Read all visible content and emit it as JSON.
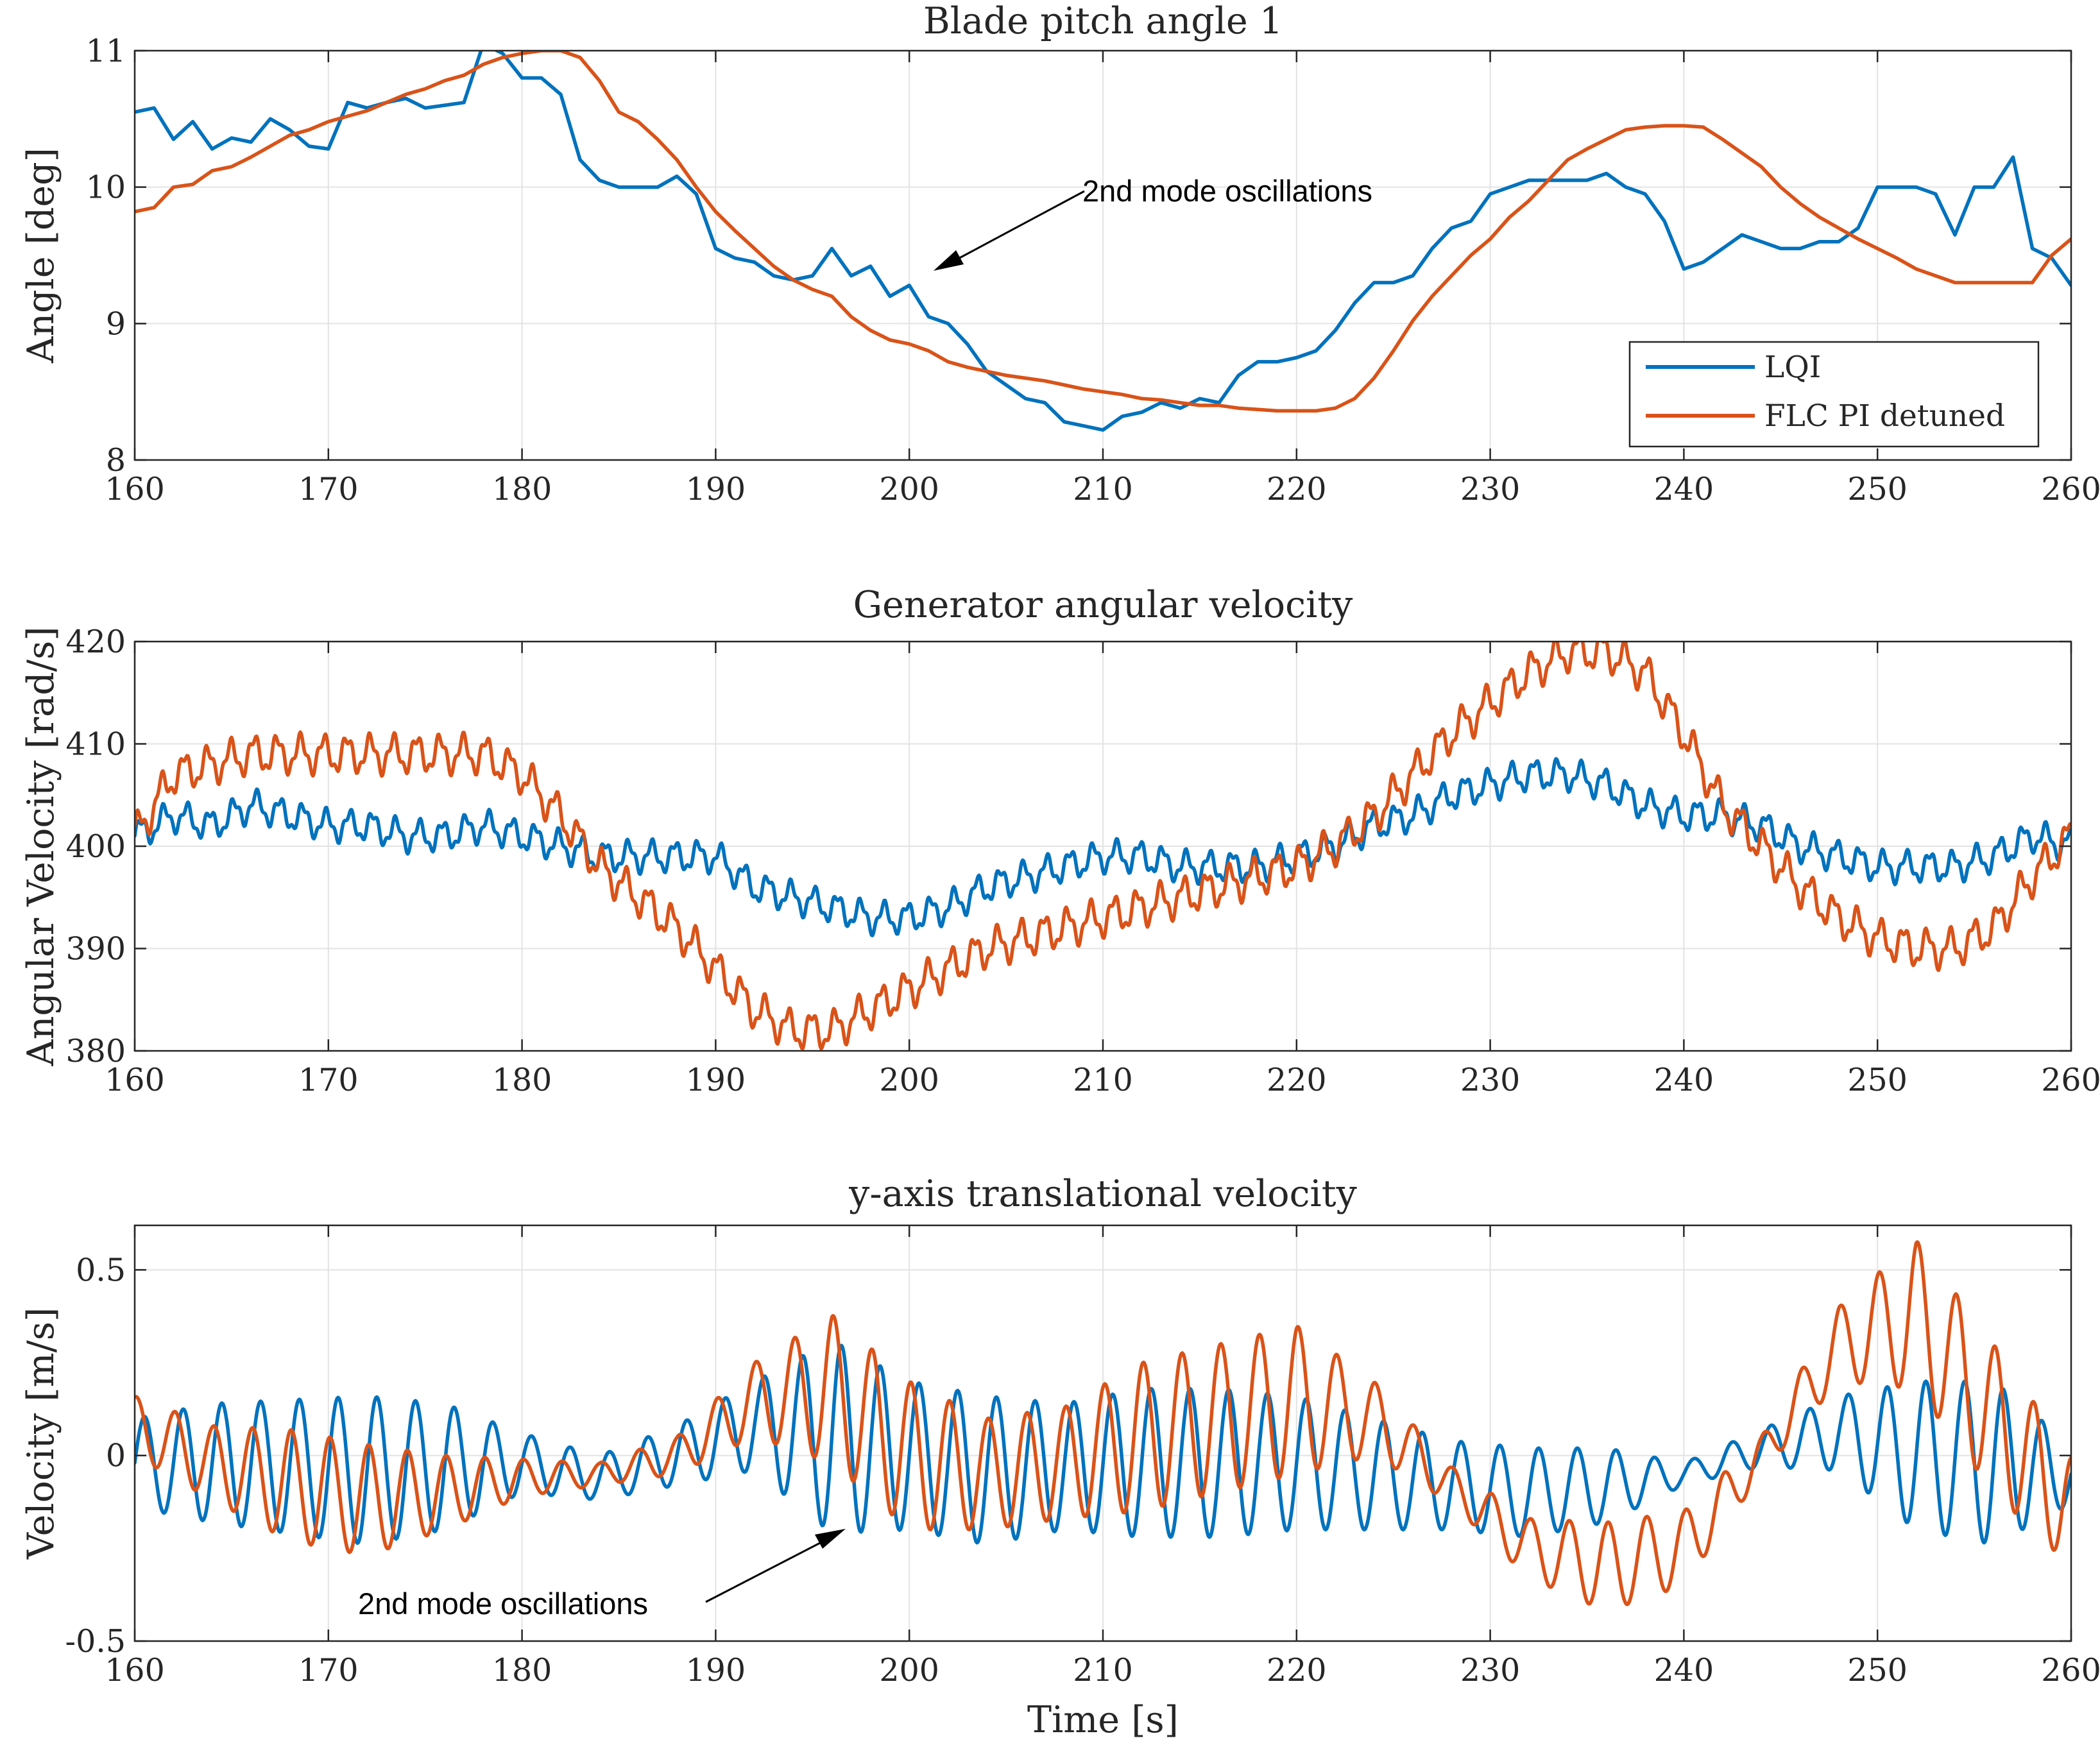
{
  "chart_data": [
    {
      "type": "line",
      "title": "Blade pitch angle 1",
      "xlabel": "",
      "ylabel": "Angle [deg]",
      "xlim": [
        160,
        260
      ],
      "ylim": [
        8,
        11
      ],
      "xticks": [
        160,
        170,
        180,
        190,
        200,
        210,
        220,
        230,
        240,
        250,
        260
      ],
      "yticks": [
        8,
        9,
        10,
        11
      ],
      "grid": true,
      "legend": {
        "placement": "bottom-right",
        "entries": [
          "LQI",
          "FLC PI detuned"
        ]
      },
      "annotations": [
        {
          "text": "2nd mode oscillations",
          "points_to": [
            200.5,
            9.45
          ]
        }
      ],
      "series": [
        {
          "name": "LQI",
          "color": "#0072BD",
          "x": [
            160,
            161,
            162,
            163,
            164,
            165,
            166,
            167,
            168,
            169,
            170,
            171,
            172,
            173,
            174,
            175,
            176,
            177,
            178,
            179,
            180,
            181,
            182,
            183,
            184,
            185,
            186,
            187,
            188,
            189,
            190,
            191,
            192,
            193,
            194,
            195,
            196,
            197,
            198,
            199,
            200,
            201,
            202,
            203,
            204,
            205,
            206,
            207,
            208,
            209,
            210,
            211,
            212,
            213,
            214,
            215,
            216,
            217,
            218,
            219,
            220,
            221,
            222,
            223,
            224,
            225,
            226,
            227,
            228,
            229,
            230,
            231,
            232,
            233,
            234,
            235,
            236,
            237,
            238,
            239,
            240,
            241,
            242,
            243,
            244,
            245,
            246,
            247,
            248,
            249,
            250,
            251,
            252,
            253,
            254,
            255,
            256,
            257,
            258,
            259,
            260
          ],
          "y": [
            10.55,
            10.58,
            10.35,
            10.48,
            10.28,
            10.36,
            10.33,
            10.5,
            10.42,
            10.3,
            10.28,
            10.62,
            10.58,
            10.62,
            10.65,
            10.58,
            10.6,
            10.62,
            11.05,
            10.98,
            10.8,
            10.8,
            10.68,
            10.2,
            10.05,
            10.0,
            10.0,
            10.0,
            10.08,
            9.95,
            9.55,
            9.48,
            9.45,
            9.35,
            9.32,
            9.35,
            9.55,
            9.35,
            9.42,
            9.2,
            9.28,
            9.05,
            9.0,
            8.85,
            8.65,
            8.55,
            8.45,
            8.42,
            8.28,
            8.25,
            8.22,
            8.32,
            8.35,
            8.42,
            8.38,
            8.45,
            8.42,
            8.62,
            8.72,
            8.72,
            8.75,
            8.8,
            8.95,
            9.15,
            9.3,
            9.3,
            9.35,
            9.55,
            9.7,
            9.75,
            9.95,
            10.0,
            10.05,
            10.05,
            10.05,
            10.05,
            10.1,
            10.0,
            9.95,
            9.75,
            9.4,
            9.45,
            9.55,
            9.65,
            9.6,
            9.55,
            9.55,
            9.6,
            9.6,
            9.7,
            10.0,
            10.0,
            10.0,
            9.95,
            9.65,
            10.0,
            10.0,
            10.22,
            9.55,
            9.48,
            9.28
          ]
        },
        {
          "name": "FLC PI detuned",
          "color": "#D95319",
          "x": [
            160,
            161,
            162,
            163,
            164,
            165,
            166,
            167,
            168,
            169,
            170,
            171,
            172,
            173,
            174,
            175,
            176,
            177,
            178,
            179,
            180,
            181,
            182,
            183,
            184,
            185,
            186,
            187,
            188,
            189,
            190,
            191,
            192,
            193,
            194,
            195,
            196,
            197,
            198,
            199,
            200,
            201,
            202,
            203,
            204,
            205,
            206,
            207,
            208,
            209,
            210,
            211,
            212,
            213,
            214,
            215,
            216,
            217,
            218,
            219,
            220,
            221,
            222,
            223,
            224,
            225,
            226,
            227,
            228,
            229,
            230,
            231,
            232,
            233,
            234,
            235,
            236,
            237,
            238,
            239,
            240,
            241,
            242,
            243,
            244,
            245,
            246,
            247,
            248,
            249,
            250,
            251,
            252,
            253,
            254,
            255,
            256,
            257,
            258,
            259,
            260
          ],
          "y": [
            9.82,
            9.85,
            10.0,
            10.02,
            10.12,
            10.15,
            10.22,
            10.3,
            10.38,
            10.42,
            10.48,
            10.52,
            10.56,
            10.62,
            10.68,
            10.72,
            10.78,
            10.82,
            10.9,
            10.95,
            10.98,
            11.0,
            11.0,
            10.95,
            10.78,
            10.55,
            10.48,
            10.35,
            10.2,
            10.0,
            9.82,
            9.68,
            9.55,
            9.42,
            9.32,
            9.25,
            9.2,
            9.05,
            8.95,
            8.88,
            8.85,
            8.8,
            8.72,
            8.68,
            8.65,
            8.62,
            8.6,
            8.58,
            8.55,
            8.52,
            8.5,
            8.48,
            8.45,
            8.44,
            8.42,
            8.4,
            8.4,
            8.38,
            8.37,
            8.36,
            8.36,
            8.36,
            8.38,
            8.45,
            8.6,
            8.8,
            9.02,
            9.2,
            9.35,
            9.5,
            9.62,
            9.78,
            9.9,
            10.05,
            10.2,
            10.28,
            10.35,
            10.42,
            10.44,
            10.45,
            10.45,
            10.44,
            10.35,
            10.25,
            10.15,
            10.0,
            9.88,
            9.78,
            9.7,
            9.62,
            9.55,
            9.48,
            9.4,
            9.35,
            9.3,
            9.3,
            9.3,
            9.3,
            9.3,
            9.5,
            9.62
          ]
        }
      ]
    },
    {
      "type": "line",
      "title": "Generator angular velocity",
      "xlabel": "",
      "ylabel": "Angular Velocity [rad/s]",
      "xlim": [
        160,
        260
      ],
      "ylim": [
        380,
        420
      ],
      "xticks": [
        160,
        170,
        180,
        190,
        200,
        210,
        220,
        230,
        240,
        250,
        260
      ],
      "yticks": [
        380,
        390,
        400,
        410,
        420
      ],
      "grid": true,
      "series": [
        {
          "name": "LQI",
          "color": "#0072BD",
          "x": [
            160,
            162,
            164,
            166,
            168,
            170,
            172,
            174,
            176,
            178,
            180,
            182,
            184,
            186,
            188,
            190,
            192,
            194,
            196,
            198,
            200,
            202,
            204,
            206,
            208,
            210,
            212,
            214,
            216,
            218,
            220,
            222,
            224,
            226,
            228,
            230,
            232,
            234,
            236,
            238,
            240,
            242,
            244,
            246,
            248,
            250,
            252,
            254,
            256,
            258,
            260
          ],
          "y": [
            401,
            403,
            402,
            404,
            403,
            402,
            402,
            401,
            401,
            402,
            401,
            400,
            399,
            399,
            399,
            399,
            396,
            395,
            394,
            393,
            393,
            394,
            396,
            397,
            398,
            399,
            399,
            398,
            398,
            398,
            399,
            400,
            402,
            403,
            405,
            406,
            407,
            407,
            406,
            404,
            403,
            403,
            402,
            400,
            399,
            398,
            398,
            398,
            399,
            401,
            400
          ],
          "oscillation": {
            "amplitude": 1.3,
            "period_s": 1.2
          }
        },
        {
          "name": "FLC PI detuned",
          "color": "#D95319",
          "x": [
            160,
            162,
            164,
            166,
            168,
            170,
            172,
            174,
            176,
            178,
            180,
            182,
            184,
            186,
            188,
            190,
            192,
            194,
            196,
            198,
            200,
            202,
            204,
            206,
            208,
            210,
            212,
            214,
            216,
            218,
            220,
            222,
            224,
            226,
            228,
            230,
            232,
            234,
            236,
            238,
            240,
            242,
            244,
            246,
            248,
            250,
            252,
            254,
            256,
            258,
            260
          ],
          "y": [
            401,
            407,
            408,
            409,
            409,
            409,
            409,
            409,
            409,
            409,
            407,
            403,
            398,
            395,
            392,
            388,
            384,
            382,
            382,
            384,
            386,
            388,
            390,
            391,
            392,
            393,
            394,
            395,
            396,
            397,
            398,
            400,
            403,
            407,
            411,
            414,
            417,
            419,
            419,
            417,
            411,
            404,
            400,
            396,
            393,
            391,
            390,
            390,
            392,
            397,
            401
          ],
          "oscillation": {
            "amplitude": 1.6,
            "period_s": 1.2
          }
        }
      ]
    },
    {
      "type": "line",
      "title": "y-axis translational velocity",
      "xlabel": "Time [s]",
      "ylabel": "Velocity [m/s]",
      "xlim": [
        160,
        260
      ],
      "ylim": [
        -0.5,
        0.62
      ],
      "xticks": [
        160,
        170,
        180,
        190,
        200,
        210,
        220,
        230,
        240,
        250,
        260
      ],
      "yticks": [
        -0.5,
        0,
        0.5
      ],
      "ytick_labels": [
        "-0.5",
        "0",
        "0.5"
      ],
      "grid": true,
      "annotations": [
        {
          "text": "2nd mode oscillations",
          "points_to": [
            198.5,
            -0.18
          ]
        }
      ],
      "series": [
        {
          "name": "LQI",
          "color": "#0072BD",
          "x": [
            160,
            164,
            168,
            172,
            176,
            180,
            184,
            188,
            192,
            196,
            200,
            204,
            208,
            212,
            216,
            220,
            224,
            228,
            232,
            236,
            240,
            244,
            248,
            252,
            256,
            260
          ],
          "y": [
            -0.02,
            -0.02,
            -0.03,
            -0.04,
            -0.03,
            -0.02,
            -0.06,
            0.0,
            0.08,
            0.05,
            0.0,
            -0.04,
            -0.03,
            -0.02,
            -0.02,
            -0.02,
            -0.05,
            -0.08,
            -0.1,
            -0.08,
            -0.05,
            0.02,
            0.06,
            0.0,
            -0.02,
            -0.05
          ],
          "amplitude": [
            0.12,
            0.16,
            0.18,
            0.2,
            0.17,
            0.08,
            0.06,
            0.08,
            0.12,
            0.26,
            0.2,
            0.2,
            0.17,
            0.2,
            0.2,
            0.18,
            0.15,
            0.12,
            0.12,
            0.1,
            0.03,
            0.05,
            0.1,
            0.2,
            0.22,
            0.08
          ],
          "oscillation_period_s": 2.0
        },
        {
          "name": "FLC PI detuned",
          "color": "#D95319",
          "x": [
            160,
            164,
            168,
            172,
            176,
            180,
            184,
            188,
            192,
            196,
            200,
            204,
            208,
            212,
            216,
            220,
            224,
            228,
            232,
            236,
            240,
            244,
            248,
            252,
            256,
            260
          ],
          "y": [
            0.08,
            -0.02,
            -0.08,
            -0.12,
            -0.1,
            -0.06,
            -0.05,
            0.0,
            0.15,
            0.18,
            0.0,
            -0.05,
            -0.02,
            0.05,
            0.1,
            0.15,
            0.1,
            -0.08,
            -0.25,
            -0.3,
            -0.25,
            0.0,
            0.3,
            0.38,
            0.1,
            -0.15
          ],
          "amplitude": [
            0.08,
            0.1,
            0.15,
            0.15,
            0.1,
            0.05,
            0.03,
            0.05,
            0.1,
            0.2,
            0.2,
            0.15,
            0.15,
            0.2,
            0.2,
            0.2,
            0.1,
            0.05,
            0.08,
            0.12,
            0.1,
            0.05,
            0.1,
            0.2,
            0.2,
            0.15
          ],
          "oscillation_period_s": 2.0
        }
      ]
    }
  ]
}
